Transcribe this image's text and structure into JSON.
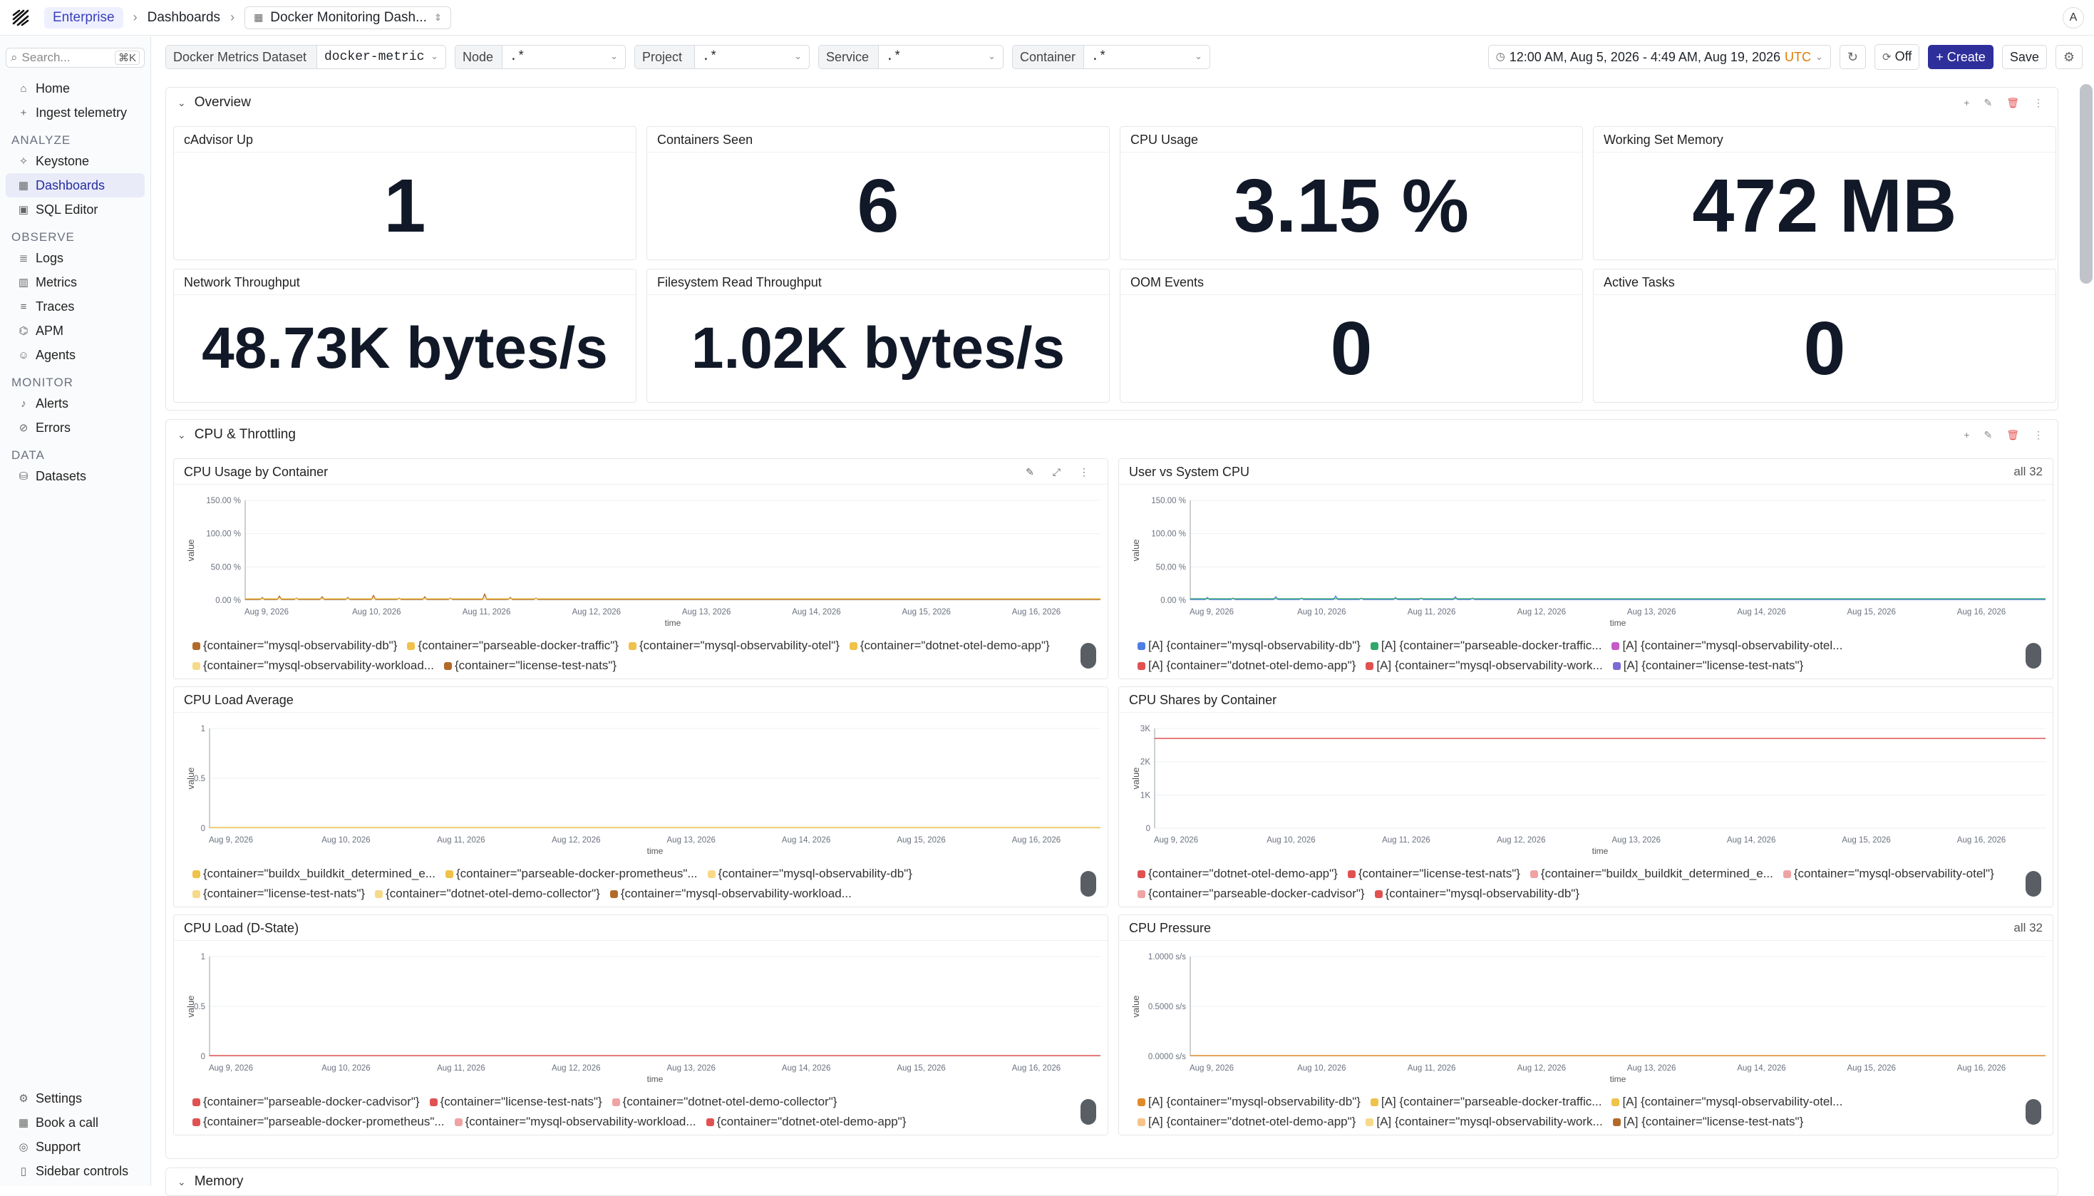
{
  "topbar": {
    "crumbs": [
      "Enterprise",
      "Dashboards"
    ],
    "dashboard_title": "Docker Monitoring Dash...",
    "avatar": "A"
  },
  "sidebar": {
    "search_placeholder": "Search...",
    "search_kbd": "⌘K",
    "top_items": [
      {
        "label": "Home",
        "icon": "home-icon"
      },
      {
        "label": "Ingest telemetry",
        "icon": "plus-icon"
      }
    ],
    "sections": [
      {
        "title": "ANALYZE",
        "items": [
          {
            "label": "Keystone",
            "icon": "keystone-icon"
          },
          {
            "label": "Dashboards",
            "icon": "dashboard-icon",
            "active": true
          },
          {
            "label": "SQL Editor",
            "icon": "sql-icon"
          }
        ]
      },
      {
        "title": "OBSERVE",
        "items": [
          {
            "label": "Logs",
            "icon": "logs-icon"
          },
          {
            "label": "Metrics",
            "icon": "metrics-icon"
          },
          {
            "label": "Traces",
            "icon": "traces-icon"
          },
          {
            "label": "APM",
            "icon": "apm-icon"
          },
          {
            "label": "Agents",
            "icon": "agents-icon"
          }
        ]
      },
      {
        "title": "MONITOR",
        "items": [
          {
            "label": "Alerts",
            "icon": "alert-icon"
          },
          {
            "label": "Errors",
            "icon": "error-icon"
          }
        ]
      },
      {
        "title": "DATA",
        "items": [
          {
            "label": "Datasets",
            "icon": "dataset-icon"
          }
        ]
      }
    ],
    "bottom_items": [
      {
        "label": "Settings",
        "icon": "settings-icon"
      },
      {
        "label": "Book a call",
        "icon": "calendar-icon"
      },
      {
        "label": "Support",
        "icon": "support-icon"
      },
      {
        "label": "Sidebar controls",
        "icon": "sidebar-icon"
      }
    ]
  },
  "filters": [
    {
      "label": "Docker Metrics Dataset",
      "value": "docker-metric"
    },
    {
      "label": "Node",
      "value": ".*"
    },
    {
      "label": "Project",
      "value": ".*"
    },
    {
      "label": "Service",
      "value": ".*"
    },
    {
      "label": "Container",
      "value": ".*"
    }
  ],
  "controls": {
    "time_range": "12:00 AM, Aug 5, 2026 - 4:49 AM, Aug 19, 2026",
    "tz": "UTC",
    "refresh": "Off",
    "create": "+ Create",
    "save": "Save"
  },
  "sections": {
    "overview": "Overview",
    "cpu": "CPU & Throttling",
    "memory": "Memory"
  },
  "stats": [
    {
      "title": "cAdvisor Up",
      "value": "1"
    },
    {
      "title": "Containers Seen",
      "value": "6"
    },
    {
      "title": "CPU Usage",
      "value": "3.15 %"
    },
    {
      "title": "Working Set Memory",
      "value": "472 MB"
    },
    {
      "title": "Network Throughput",
      "value": "48.73K bytes/s"
    },
    {
      "title": "Filesystem Read Throughput",
      "value": "1.02K bytes/s"
    },
    {
      "title": "OOM Events",
      "value": "0"
    },
    {
      "title": "Active Tasks",
      "value": "0"
    }
  ],
  "colors": {
    "orange": "#e28a2a",
    "yellow": "#f0c24a",
    "red": "#e05252",
    "blue": "#4f7fe3",
    "green": "#2fa86a",
    "magenta": "#c35bc8",
    "purple": "#7a6bd6",
    "brown": "#b26a2a",
    "pink": "#f0a3a3",
    "lightorange": "#f5c38a",
    "lightyellow": "#f7d98a"
  },
  "chart_data": [
    {
      "title": "CPU Usage by Container",
      "type": "line",
      "xlabel": "time",
      "ylabel": "value",
      "yticks": [
        "150.00 %",
        "100.00 %",
        "50.00 %",
        "0.00 %"
      ],
      "ylim": [
        0,
        150
      ],
      "xticks": [
        "Aug 9, 2026",
        "Aug 10, 2026",
        "Aug 11, 2026",
        "Aug 12, 2026",
        "Aug 13, 2026",
        "Aug 14, 2026",
        "Aug 15, 2026",
        "Aug 16, 2026"
      ],
      "series": [
        {
          "name": "{container=\"mysql-observability-db\"}",
          "color": "#b26a2a"
        },
        {
          "name": "{container=\"parseable-docker-traffic\"}",
          "color": "#f0c24a"
        },
        {
          "name": "{container=\"mysql-observability-otel\"}",
          "color": "#f0c24a"
        },
        {
          "name": "{container=\"dotnet-otel-demo-app\"}",
          "color": "#f0c24a"
        },
        {
          "name": "{container=\"mysql-observability-workload...",
          "color": "#f7d98a"
        },
        {
          "name": "{container=\"license-test-nats\"}",
          "color": "#b26a2a"
        }
      ],
      "spikes": [
        [
          0.02,
          4
        ],
        [
          0.04,
          6
        ],
        [
          0.06,
          3
        ],
        [
          0.09,
          5
        ],
        [
          0.12,
          4
        ],
        [
          0.15,
          7
        ],
        [
          0.18,
          3
        ],
        [
          0.21,
          5
        ],
        [
          0.24,
          3
        ],
        [
          0.28,
          9
        ],
        [
          0.31,
          4
        ],
        [
          0.34,
          3
        ]
      ]
    },
    {
      "title": "User vs System CPU",
      "extra": "all 32",
      "type": "line",
      "xlabel": "time",
      "ylabel": "value",
      "yticks": [
        "150.00 %",
        "100.00 %",
        "50.00 %",
        "0.00 %"
      ],
      "ylim": [
        0,
        150
      ],
      "xticks": [
        "Aug 9, 2026",
        "Aug 10, 2026",
        "Aug 11, 2026",
        "Aug 12, 2026",
        "Aug 13, 2026",
        "Aug 14, 2026",
        "Aug 15, 2026",
        "Aug 16, 2026"
      ],
      "series": [
        {
          "name": "[A] {container=\"mysql-observability-db\"}",
          "color": "#4f7fe3"
        },
        {
          "name": "[A] {container=\"parseable-docker-traffic...",
          "color": "#2fa86a"
        },
        {
          "name": "[A] {container=\"mysql-observability-otel...",
          "color": "#c35bc8"
        },
        {
          "name": "[A] {container=\"dotnet-otel-demo-app\"}",
          "color": "#e05252"
        },
        {
          "name": "[A] {container=\"mysql-observability-work...",
          "color": "#e05252"
        },
        {
          "name": "[A] {container=\"license-test-nats\"}",
          "color": "#7a6bd6"
        }
      ],
      "spikes": [
        [
          0.02,
          4
        ],
        [
          0.05,
          3
        ],
        [
          0.1,
          5
        ],
        [
          0.13,
          3
        ],
        [
          0.17,
          6
        ],
        [
          0.2,
          3
        ],
        [
          0.24,
          4
        ],
        [
          0.27,
          3
        ],
        [
          0.31,
          5
        ],
        [
          0.33,
          3
        ]
      ]
    },
    {
      "title": "CPU Load Average",
      "type": "line",
      "xlabel": "time",
      "ylabel": "value",
      "yticks": [
        "1",
        "0.5",
        "0"
      ],
      "ylim": [
        0,
        1
      ],
      "xticks": [
        "Aug 9, 2026",
        "Aug 10, 2026",
        "Aug 11, 2026",
        "Aug 12, 2026",
        "Aug 13, 2026",
        "Aug 14, 2026",
        "Aug 15, 2026",
        "Aug 16, 2026"
      ],
      "series": [
        {
          "name": "{container=\"buildx_buildkit_determined_e...",
          "color": "#f0c24a"
        },
        {
          "name": "{container=\"parseable-docker-prometheus\"...",
          "color": "#f0c24a"
        },
        {
          "name": "{container=\"mysql-observability-db\"}",
          "color": "#f7d98a"
        },
        {
          "name": "{container=\"license-test-nats\"}",
          "color": "#f7d98a"
        },
        {
          "name": "{container=\"dotnet-otel-demo-collector\"}",
          "color": "#f7d98a"
        },
        {
          "name": "{container=\"mysql-observability-workload...",
          "color": "#b26a2a"
        }
      ],
      "flat": 0
    },
    {
      "title": "CPU Shares by Container",
      "type": "line",
      "xlabel": "time",
      "ylabel": "value",
      "yticks": [
        "3K",
        "2K",
        "1K",
        "0"
      ],
      "ylim": [
        0,
        3000
      ],
      "xticks": [
        "Aug 9, 2026",
        "Aug 10, 2026",
        "Aug 11, 2026",
        "Aug 12, 2026",
        "Aug 13, 2026",
        "Aug 14, 2026",
        "Aug 15, 2026",
        "Aug 16, 2026"
      ],
      "series": [
        {
          "name": "{container=\"dotnet-otel-demo-app\"}",
          "color": "#e05252"
        },
        {
          "name": "{container=\"license-test-nats\"}",
          "color": "#e05252"
        },
        {
          "name": "{container=\"buildx_buildkit_determined_e...",
          "color": "#f0a3a3"
        },
        {
          "name": "{container=\"mysql-observability-otel\"}",
          "color": "#f0a3a3"
        },
        {
          "name": "{container=\"parseable-docker-cadvisor\"}",
          "color": "#f0a3a3"
        },
        {
          "name": "{container=\"mysql-observability-db\"}",
          "color": "#e05252"
        }
      ],
      "flat": 2700
    },
    {
      "title": "CPU Load (D-State)",
      "type": "line",
      "xlabel": "time",
      "ylabel": "value",
      "yticks": [
        "1",
        "0.5",
        "0"
      ],
      "ylim": [
        0,
        1
      ],
      "xticks": [
        "Aug 9, 2026",
        "Aug 10, 2026",
        "Aug 11, 2026",
        "Aug 12, 2026",
        "Aug 13, 2026",
        "Aug 14, 2026",
        "Aug 15, 2026",
        "Aug 16, 2026"
      ],
      "series": [
        {
          "name": "{container=\"parseable-docker-cadvisor\"}",
          "color": "#e05252"
        },
        {
          "name": "{container=\"license-test-nats\"}",
          "color": "#e05252"
        },
        {
          "name": "{container=\"dotnet-otel-demo-collector\"}",
          "color": "#f0a3a3"
        },
        {
          "name": "{container=\"parseable-docker-prometheus\"...",
          "color": "#e05252"
        },
        {
          "name": "{container=\"mysql-observability-workload...",
          "color": "#f0a3a3"
        },
        {
          "name": "{container=\"dotnet-otel-demo-app\"}",
          "color": "#e05252"
        }
      ],
      "flat": 0
    },
    {
      "title": "CPU Pressure",
      "extra": "all 32",
      "type": "line",
      "xlabel": "time",
      "ylabel": "value",
      "yticks": [
        "1.0000 s/s",
        "0.5000 s/s",
        "0.0000 s/s"
      ],
      "ylim": [
        0,
        1
      ],
      "xticks": [
        "Aug 9, 2026",
        "Aug 10, 2026",
        "Aug 11, 2026",
        "Aug 12, 2026",
        "Aug 13, 2026",
        "Aug 14, 2026",
        "Aug 15, 2026",
        "Aug 16, 2026"
      ],
      "series": [
        {
          "name": "[A] {container=\"mysql-observability-db\"}",
          "color": "#e28a2a"
        },
        {
          "name": "[A] {container=\"parseable-docker-traffic...",
          "color": "#f0c24a"
        },
        {
          "name": "[A] {container=\"mysql-observability-otel...",
          "color": "#f0c24a"
        },
        {
          "name": "[A] {container=\"dotnet-otel-demo-app\"}",
          "color": "#f5c38a"
        },
        {
          "name": "[A] {container=\"mysql-observability-work...",
          "color": "#f7d98a"
        },
        {
          "name": "[A] {container=\"license-test-nats\"}",
          "color": "#b26a2a"
        }
      ],
      "flat": 0
    }
  ]
}
